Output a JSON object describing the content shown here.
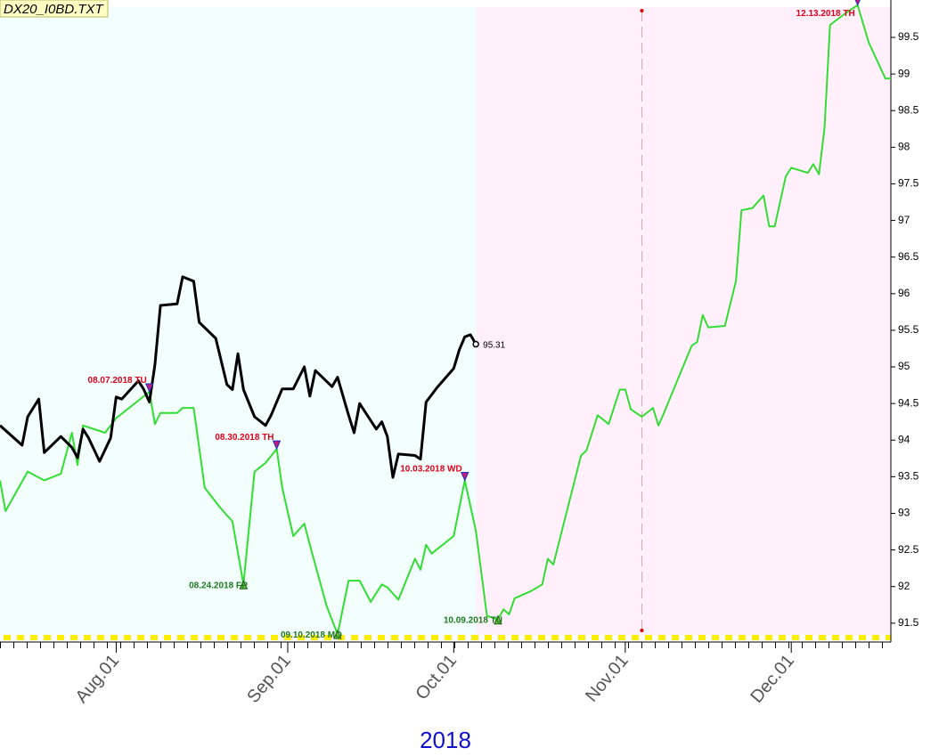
{
  "chart_data": {
    "type": "line",
    "title": "DX20_I0BD.TXT",
    "xlabel": "2018",
    "xlim": [
      "2018-07-11",
      "2018-12-19"
    ],
    "xticks": [
      {
        "value": "2018-08-01",
        "label": "Aug.01"
      },
      {
        "value": "2018-09-01",
        "label": "Sep.01"
      },
      {
        "value": "2018-10-01",
        "label": "Oct.01"
      },
      {
        "value": "2018-11-01",
        "label": "Nov.01"
      },
      {
        "value": "2018-12-01",
        "label": "Dec.01"
      }
    ],
    "ylim": [
      91.34,
      99.95
    ],
    "yticks": [
      91.5,
      92,
      92.5,
      93,
      93.5,
      94,
      94.5,
      95,
      95.5,
      96,
      96.5,
      97,
      97.5,
      98,
      98.5,
      99,
      99.5
    ],
    "vline": "2018-11-04",
    "series": [
      {
        "color": "#000000",
        "x": [
          "2018-07-11",
          "2018-07-15",
          "2018-07-16",
          "2018-07-18",
          "2018-07-19",
          "2018-07-22",
          "2018-07-24",
          "2018-07-25",
          "2018-07-26",
          "2018-07-27",
          "2018-07-29",
          "2018-07-31",
          "2018-08-01",
          "2018-08-02",
          "2018-08-05",
          "2018-08-06",
          "2018-08-07",
          "2018-08-08",
          "2018-08-09",
          "2018-08-12",
          "2018-08-13",
          "2018-08-15",
          "2018-08-16",
          "2018-08-19",
          "2018-08-21",
          "2018-08-22",
          "2018-08-23",
          "2018-08-24",
          "2018-08-26",
          "2018-08-28",
          "2018-08-29",
          "2018-08-31",
          "2018-09-02",
          "2018-09-04",
          "2018-09-05",
          "2018-09-06",
          "2018-09-09",
          "2018-09-10",
          "2018-09-12",
          "2018-09-13",
          "2018-09-14",
          "2018-09-17",
          "2018-09-18",
          "2018-09-19",
          "2018-09-20",
          "2018-09-21",
          "2018-09-24",
          "2018-09-25",
          "2018-09-26",
          "2018-09-28",
          "2018-10-01",
          "2018-10-02",
          "2018-10-03",
          "2018-10-04",
          "2018-10-05"
        ],
        "values": [
          94.2,
          93.93,
          94.32,
          94.56,
          93.83,
          94.05,
          93.9,
          93.76,
          94.15,
          94.03,
          93.71,
          94.03,
          94.59,
          94.56,
          94.81,
          94.69,
          94.52,
          95.03,
          95.84,
          95.86,
          96.23,
          96.17,
          95.61,
          95.39,
          94.76,
          94.69,
          95.18,
          94.69,
          94.32,
          94.2,
          94.34,
          94.7,
          94.7,
          95.0,
          94.6,
          94.95,
          94.73,
          94.86,
          94.34,
          94.1,
          94.5,
          94.15,
          94.25,
          94.05,
          93.49,
          93.81,
          93.79,
          93.74,
          94.52,
          94.72,
          94.98,
          95.23,
          95.41,
          95.44,
          95.31
        ]
      },
      {
        "color": "#33dd33",
        "x": [
          "2018-07-11",
          "2018-07-12",
          "2018-07-16",
          "2018-07-19",
          "2018-07-22",
          "2018-07-24",
          "2018-07-25",
          "2018-07-26",
          "2018-07-30",
          "2018-08-01",
          "2018-08-07",
          "2018-08-08",
          "2018-08-09",
          "2018-08-12",
          "2018-08-13",
          "2018-08-15",
          "2018-08-17",
          "2018-08-20",
          "2018-08-22",
          "2018-08-24",
          "2018-08-26",
          "2018-08-28",
          "2018-08-30",
          "2018-08-31",
          "2018-09-02",
          "2018-09-04",
          "2018-09-05",
          "2018-09-08",
          "2018-09-10",
          "2018-09-12",
          "2018-09-14",
          "2018-09-16",
          "2018-09-18",
          "2018-09-19",
          "2018-09-21",
          "2018-09-24",
          "2018-09-25",
          "2018-09-26",
          "2018-09-27",
          "2018-10-01",
          "2018-10-03",
          "2018-10-05",
          "2018-10-07",
          "2018-10-09",
          "2018-10-10",
          "2018-10-11",
          "2018-10-12",
          "2018-10-15",
          "2018-10-17",
          "2018-10-18",
          "2018-10-19",
          "2018-10-24",
          "2018-10-25",
          "2018-10-27",
          "2018-10-29",
          "2018-10-31",
          "2018-11-01",
          "2018-11-02",
          "2018-11-04",
          "2018-11-06",
          "2018-11-07",
          "2018-11-08",
          "2018-11-13",
          "2018-11-14",
          "2018-11-15",
          "2018-11-16",
          "2018-11-19",
          "2018-11-21",
          "2018-11-22",
          "2018-11-24",
          "2018-11-26",
          "2018-11-27",
          "2018-11-28",
          "2018-11-30",
          "2018-12-01",
          "2018-12-04",
          "2018-12-05",
          "2018-12-06",
          "2018-12-07",
          "2018-12-08",
          "2018-12-11",
          "2018-12-13",
          "2018-12-15",
          "2018-12-18",
          "2018-12-19"
        ],
        "values": [
          93.45,
          93.03,
          93.57,
          93.45,
          93.54,
          94.1,
          93.66,
          94.2,
          94.1,
          94.3,
          94.66,
          94.22,
          94.37,
          94.37,
          94.44,
          94.44,
          93.35,
          93.06,
          92.89,
          92.03,
          93.57,
          93.69,
          93.88,
          93.35,
          92.69,
          92.86,
          92.57,
          91.74,
          91.35,
          92.08,
          92.08,
          91.79,
          92.03,
          91.99,
          91.82,
          92.38,
          92.23,
          92.57,
          92.45,
          92.69,
          93.45,
          92.76,
          91.6,
          91.55,
          91.69,
          91.62,
          91.84,
          91.94,
          92.03,
          92.38,
          92.3,
          93.79,
          93.86,
          94.34,
          94.22,
          94.69,
          94.69,
          94.42,
          94.32,
          94.44,
          94.2,
          94.37,
          95.29,
          95.34,
          95.71,
          95.54,
          95.56,
          96.17,
          97.14,
          97.17,
          97.34,
          96.92,
          96.92,
          97.6,
          97.72,
          97.65,
          97.77,
          97.63,
          98.26,
          99.67,
          99.84,
          99.94,
          99.43,
          98.94,
          98.94
        ]
      }
    ],
    "annotations": [
      {
        "text": "08.07.2018 TU",
        "x": "2018-08-07",
        "kind": "peak",
        "color": "#e0001a"
      },
      {
        "text": "08.24.2018 FR",
        "x": "2018-08-24",
        "kind": "trough",
        "color": "#1f7a1f"
      },
      {
        "text": "08.30.2018 TH",
        "x": "2018-08-30",
        "kind": "peak",
        "color": "#e0001a"
      },
      {
        "text": "09.10.2018 MO",
        "x": "2018-09-10",
        "kind": "trough",
        "color": "#1f7a1f"
      },
      {
        "text": "10.03.2018 WD",
        "x": "2018-10-03",
        "kind": "peak",
        "color": "#e0001a"
      },
      {
        "text": "10.09.2018 TU",
        "x": "2018-10-09",
        "kind": "trough",
        "color": "#1f7a1f"
      },
      {
        "text": "12.13.2018 TH",
        "x": "2018-12-13",
        "kind": "peak",
        "color": "#e0001a"
      }
    ]
  }
}
